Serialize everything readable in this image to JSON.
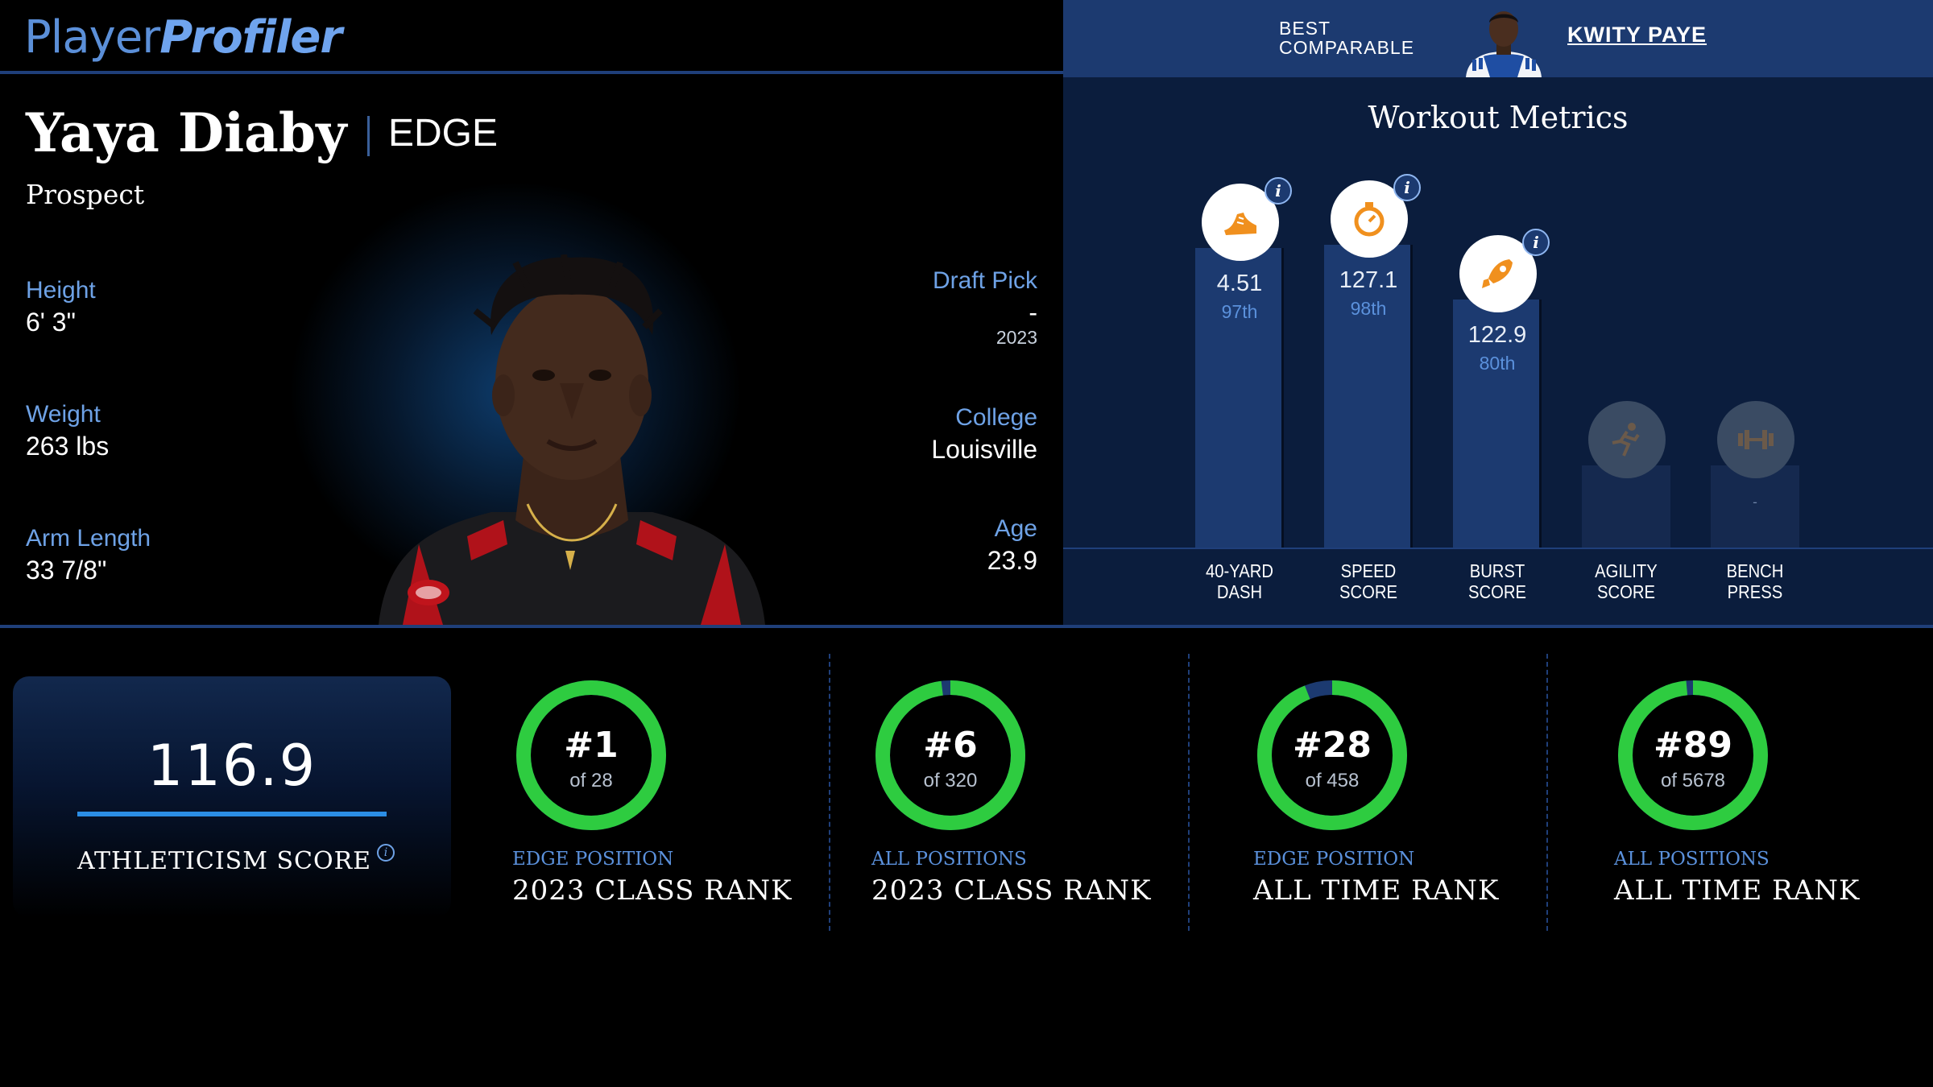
{
  "header": {
    "logo_player": "Player",
    "logo_profiler": "Profiler",
    "best_comparable_line1": "BEST",
    "best_comparable_line2": "COMPARABLE",
    "best_comparable_name": "KWITY PAYE"
  },
  "player": {
    "name": "Yaya Diaby",
    "position": "EDGE",
    "status": "Prospect",
    "height_label": "Height",
    "height": "6' 3\"",
    "weight_label": "Weight",
    "weight": "263 lbs",
    "arm_label": "Arm Length",
    "arm": "33 7/8\"",
    "draft_label": "Draft Pick",
    "draft_pick": "-",
    "draft_year": "2023",
    "college_label": "College",
    "college": "Louisville",
    "age_label": "Age",
    "age": "23.9"
  },
  "workout": {
    "title": "Workout Metrics",
    "metrics": [
      {
        "label1": "40-YARD",
        "label2": "DASH",
        "value": "4.51",
        "percentile": "97th",
        "percentile_num": 97,
        "icon": "running-shoe-icon"
      },
      {
        "label1": "SPEED",
        "label2": "SCORE",
        "value": "127.1",
        "percentile": "98th",
        "percentile_num": 98,
        "icon": "stopwatch-icon"
      },
      {
        "label1": "BURST",
        "label2": "SCORE",
        "value": "122.9",
        "percentile": "80th",
        "percentile_num": 80,
        "icon": "rocket-icon"
      },
      {
        "label1": "AGILITY",
        "label2": "SCORE",
        "value": "",
        "percentile": "",
        "percentile_num": null,
        "icon": "runner-icon"
      },
      {
        "label1": "BENCH",
        "label2": "PRESS",
        "value": "-",
        "percentile": "",
        "percentile_num": null,
        "icon": "barbell-icon"
      }
    ]
  },
  "athleticism": {
    "score": "116.9",
    "label": "ATHLETICISM SCORE"
  },
  "ranks": [
    {
      "rank": "#1",
      "of": "of 28",
      "sub": "EDGE POSITION",
      "main": "2023 CLASS RANK",
      "fill": 1.0
    },
    {
      "rank": "#6",
      "of": "of 320",
      "sub": "ALL POSITIONS",
      "main": "2023 CLASS RANK",
      "fill": 0.98
    },
    {
      "rank": "#28",
      "of": "of 458",
      "sub": "EDGE POSITION",
      "main": "ALL TIME RANK",
      "fill": 0.94
    },
    {
      "rank": "#89",
      "of": "of 5678",
      "sub": "ALL POSITIONS",
      "main": "ALL TIME RANK",
      "fill": 0.985
    }
  ],
  "colors": {
    "accent_blue": "#6ea2e6",
    "panel_blue": "#1c3a70",
    "ring_green": "#2ecc40",
    "icon_orange": "#f0901e"
  }
}
